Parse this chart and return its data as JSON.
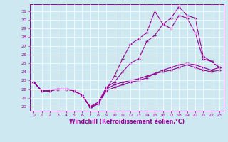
{
  "xlabel": "Windchill (Refroidissement éolien,°C)",
  "bg_color": "#cde8f0",
  "line_color": "#990099",
  "grid_color": "#ffffff",
  "xlim": [
    -0.5,
    23.5
  ],
  "ylim": [
    19.5,
    31.8
  ],
  "yticks": [
    20,
    21,
    22,
    23,
    24,
    25,
    26,
    27,
    28,
    29,
    30,
    31
  ],
  "xticks": [
    0,
    1,
    2,
    3,
    4,
    5,
    6,
    7,
    8,
    9,
    10,
    11,
    12,
    13,
    14,
    15,
    16,
    17,
    18,
    19,
    20,
    21,
    22,
    23
  ],
  "series": [
    [
      22.8,
      21.8,
      21.8,
      22.0,
      22.0,
      21.8,
      21.3,
      20.0,
      20.5,
      22.2,
      22.8,
      24.0,
      25.0,
      25.5,
      27.5,
      28.2,
      29.5,
      29.0,
      30.5,
      30.2,
      28.5,
      25.5,
      25.2,
      24.5
    ],
    [
      22.8,
      21.8,
      21.8,
      22.0,
      22.0,
      21.8,
      21.3,
      19.9,
      20.3,
      22.0,
      23.5,
      25.5,
      27.2,
      27.8,
      28.5,
      31.0,
      29.5,
      30.2,
      31.5,
      30.5,
      30.2,
      25.8,
      25.2,
      24.5
    ],
    [
      22.8,
      21.8,
      21.8,
      22.0,
      22.0,
      21.8,
      21.3,
      19.9,
      20.3,
      22.0,
      22.5,
      22.8,
      23.0,
      23.2,
      23.5,
      23.8,
      24.0,
      24.2,
      24.5,
      24.8,
      24.5,
      24.2,
      24.0,
      24.2
    ],
    [
      22.8,
      21.8,
      21.8,
      22.0,
      22.0,
      21.8,
      21.3,
      19.9,
      20.3,
      21.8,
      22.2,
      22.5,
      22.8,
      23.0,
      23.3,
      23.8,
      24.2,
      24.5,
      24.8,
      25.0,
      24.8,
      24.5,
      24.2,
      24.5
    ]
  ]
}
